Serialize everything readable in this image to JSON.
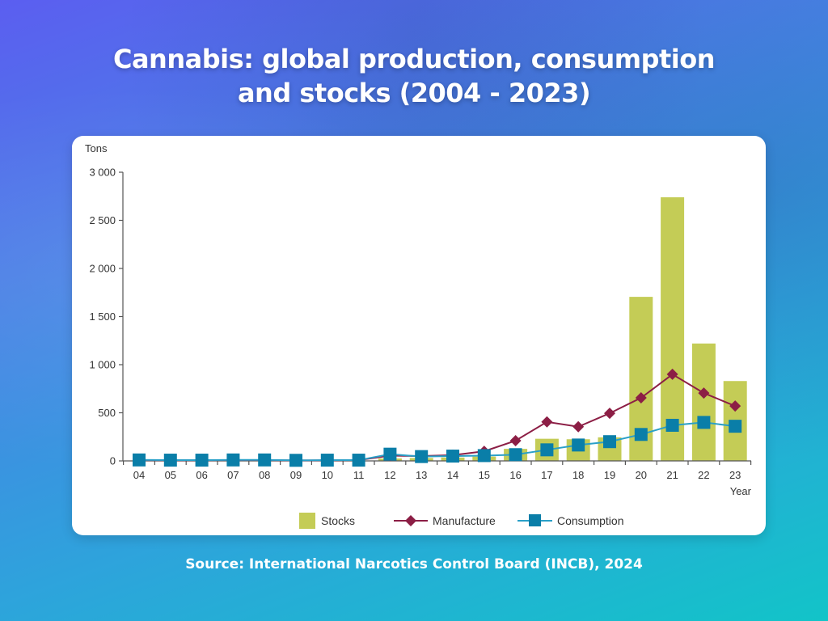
{
  "header": {
    "title_line1": "Cannabis: global production, consumption",
    "title_line2": "and stocks (2004 - 2023)"
  },
  "footer": {
    "source": "Source: International Narcotics Control Board (INCB), 2024"
  },
  "colors": {
    "stocks": "#c4cc56",
    "manufacture": "#8c1e45",
    "consumption": "#0a7ea8",
    "consumption_line": "#2aa0c8",
    "axis": "#555555"
  },
  "chart_data": {
    "type": "bar",
    "title": "Cannabis: global production, consumption and stocks (2004 - 2023)",
    "xlabel": "Year",
    "ylabel": "Tons",
    "ylim": [
      0,
      3000
    ],
    "yticks": [
      0,
      500,
      1000,
      1500,
      2000,
      2500,
      3000
    ],
    "ytick_labels": [
      "0",
      "500",
      "1 000",
      "1 500",
      "2 000",
      "2 500",
      "3 000"
    ],
    "categories": [
      "04",
      "05",
      "06",
      "07",
      "08",
      "09",
      "10",
      "11",
      "12",
      "13",
      "14",
      "15",
      "16",
      "17",
      "18",
      "19",
      "20",
      "21",
      "22",
      "23"
    ],
    "legend_position": "bottom",
    "series": [
      {
        "name": "Stocks",
        "type": "bar",
        "values": [
          2,
          2,
          2,
          2,
          2,
          2,
          2,
          2,
          25,
          30,
          35,
          45,
          125,
          230,
          225,
          245,
          1705,
          2740,
          1220,
          830
        ]
      },
      {
        "name": "Manufacture",
        "type": "line",
        "marker": "diamond",
        "values": [
          8,
          6,
          7,
          8,
          8,
          5,
          6,
          8,
          55,
          50,
          60,
          100,
          210,
          405,
          355,
          495,
          655,
          900,
          705,
          570
        ]
      },
      {
        "name": "Consumption",
        "type": "line",
        "marker": "square",
        "values": [
          10,
          8,
          8,
          10,
          10,
          6,
          8,
          8,
          70,
          45,
          50,
          55,
          65,
          115,
          165,
          200,
          275,
          370,
          400,
          360
        ]
      }
    ]
  }
}
